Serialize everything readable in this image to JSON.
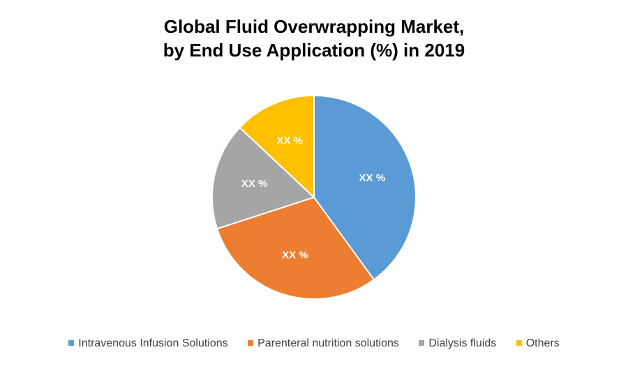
{
  "chart_data": {
    "type": "pie",
    "title_line1": "Global Fluid Overwrapping Market,",
    "title_line2": "by End Use Application (%) in 2019",
    "legend_position": "bottom",
    "categories": [
      "Intravenous Infusion Solutions",
      "Parenteral nutrition solutions",
      "Dialysis fluids",
      "Others"
    ],
    "values": [
      40,
      30,
      17,
      13
    ],
    "data_labels": [
      "XX %",
      "XX %",
      "XX %",
      "XX %"
    ],
    "colors": [
      "#5b9bd5",
      "#ed7d31",
      "#a5a5a5",
      "#ffc000"
    ]
  }
}
